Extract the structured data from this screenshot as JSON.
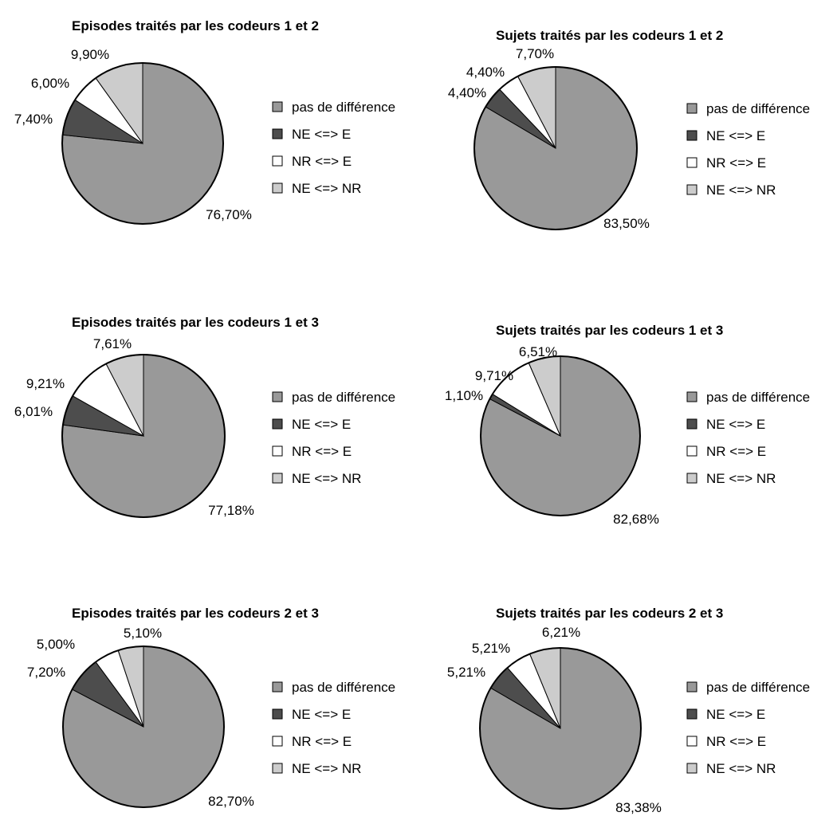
{
  "chart_data": [
    {
      "type": "pie",
      "title": "Episodes traités par les codeurs 1 et 2",
      "categories": [
        "pas de différence",
        "NE <=> E",
        "NR <=> E",
        "NE <=> NR"
      ],
      "values": [
        76.7,
        7.4,
        6.0,
        9.9
      ],
      "labels": [
        "76,70%",
        "7,40%",
        "6,00%",
        "9,90%"
      ],
      "legend": "right"
    },
    {
      "type": "pie",
      "title": "Sujets traités par les codeurs 1 et 2",
      "categories": [
        "pas de différence",
        "NE <=> E",
        "NR <=> E",
        "NE <=> NR"
      ],
      "values": [
        83.5,
        4.4,
        4.4,
        7.7
      ],
      "labels": [
        "83,50%",
        "4,40%",
        "4,40%",
        "7,70%"
      ],
      "legend": "right"
    },
    {
      "type": "pie",
      "title": "Episodes traités par les codeurs 1 et 3",
      "categories": [
        "pas de différence",
        "NE <=> E",
        "NR <=> E",
        "NE <=> NR"
      ],
      "values": [
        77.18,
        6.01,
        9.21,
        7.61
      ],
      "labels": [
        "77,18%",
        "6,01%",
        "9,21%",
        "7,61%"
      ],
      "legend": "right"
    },
    {
      "type": "pie",
      "title": "Sujets traités par les codeurs 1 et 3",
      "categories": [
        "pas de différence",
        "NE <=> E",
        "NR <=> E",
        "NE <=> NR"
      ],
      "values": [
        82.68,
        1.1,
        9.71,
        6.51
      ],
      "labels": [
        "82,68%",
        "1,10%",
        "9,71%",
        "6,51%"
      ],
      "legend": "right"
    },
    {
      "type": "pie",
      "title": "Episodes traités par les codeurs 2 et 3",
      "categories": [
        "pas de différence",
        "NE <=> E",
        "NR <=> E",
        "NE <=> NR"
      ],
      "values": [
        82.7,
        7.2,
        5.0,
        5.1
      ],
      "labels": [
        "82,70%",
        "7,20%",
        "5,00%",
        "5,10%"
      ],
      "legend": "right"
    },
    {
      "type": "pie",
      "title": "Sujets traités par les codeurs 2 et 3",
      "categories": [
        "pas de différence",
        "NE <=> E",
        "NR <=> E",
        "NE <=> NR"
      ],
      "values": [
        83.38,
        5.21,
        5.21,
        6.21
      ],
      "labels": [
        "83,38%",
        "5,21%",
        "5,21%",
        "6,21%"
      ],
      "legend": "right"
    }
  ],
  "colors": {
    "pas de différence": "#999999",
    "NE <=> E": "#4d4d4d",
    "NR <=> E": "#ffffff",
    "NE <=> NR": "#cccccc",
    "outline": "#000000"
  }
}
